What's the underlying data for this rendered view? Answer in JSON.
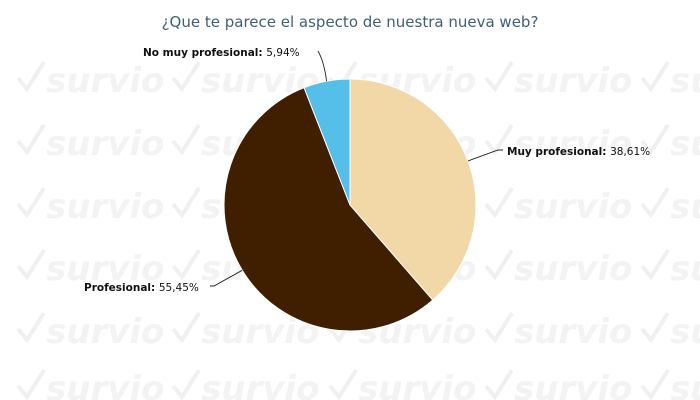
{
  "chart_data": {
    "type": "pie",
    "title": "¿Que te parece el aspecto de nuestra nueva web?",
    "slices": [
      {
        "name": "Muy profesional:",
        "value": 38.61,
        "label": "38,61%",
        "color": "#f2d8a7"
      },
      {
        "name": "Profesional:",
        "value": 55.45,
        "label": "55,45%",
        "color": "#3f1f00"
      },
      {
        "name": "No muy profesional:",
        "value": 5.94,
        "label": "5,94%",
        "color": "#56bfe9"
      }
    ],
    "start_angle": "12 o'clock",
    "direction": "clockwise",
    "legend": "none"
  },
  "watermark": {
    "text": "survio",
    "color": "#f3f3f3"
  }
}
